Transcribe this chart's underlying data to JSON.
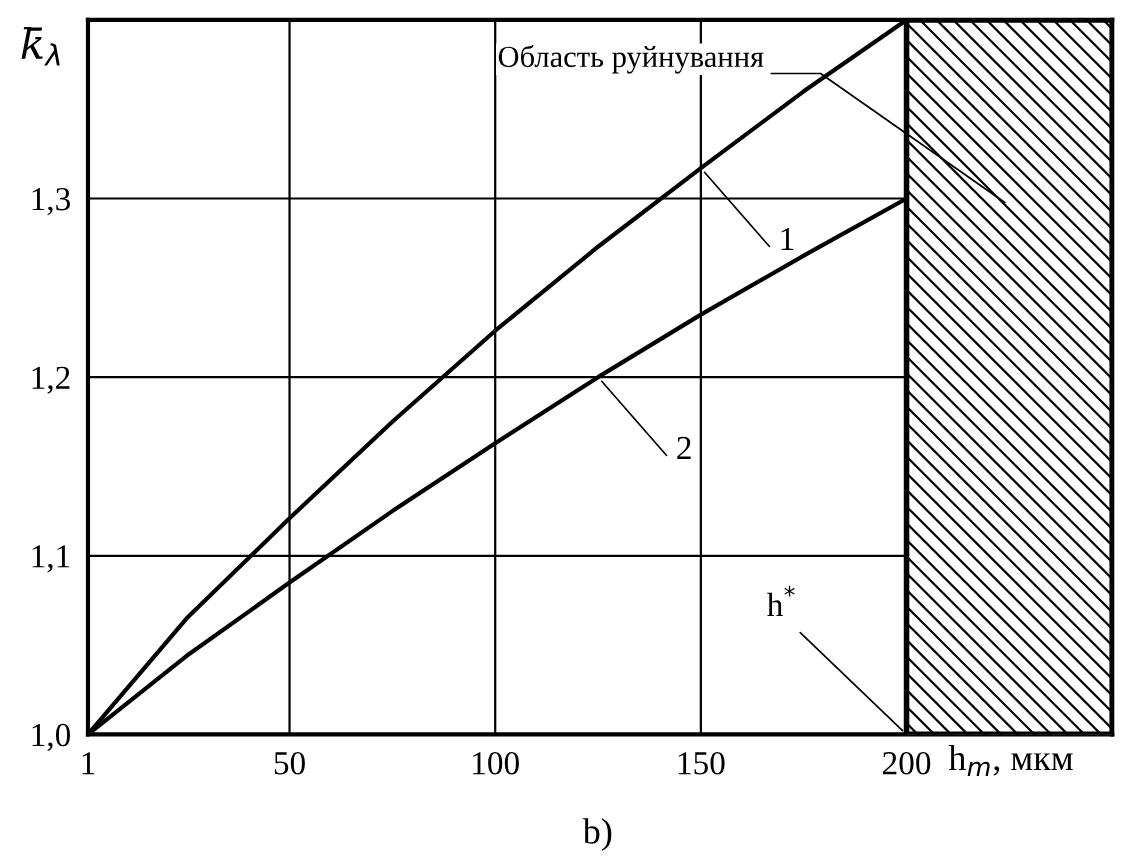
{
  "chart_data": {
    "type": "line",
    "xlabel": "h$_{m}$, мкм",
    "ylabel": "k̄$_{λ}$",
    "xlim": [
      1,
      250
    ],
    "ylim": [
      1.0,
      1.4
    ],
    "xticks": [
      1,
      50,
      100,
      150,
      200
    ],
    "yticks": [
      {
        "value": 1.0,
        "label": "1,0"
      },
      {
        "value": 1.1,
        "label": "1,1"
      },
      {
        "value": 1.2,
        "label": "1,2"
      },
      {
        "value": 1.3,
        "label": "1,3"
      }
    ],
    "grid": true,
    "marker": "none",
    "line_style": "solid",
    "series": [
      {
        "color": "#000000",
        "x": [
          1,
          25,
          50,
          75,
          100,
          125,
          150,
          175,
          200
        ],
        "values": [
          1.0,
          1.065,
          1.121,
          1.175,
          1.226,
          1.273,
          1.317,
          1.36,
          1.4
        ]
      },
      {
        "color": "#000000",
        "x": [
          1,
          25,
          50,
          75,
          100,
          125,
          150,
          175,
          200
        ],
        "values": [
          1.0,
          1.044,
          1.085,
          1.125,
          1.163,
          1.2,
          1.235,
          1.268,
          1.3
        ]
      }
    ],
    "bands": [
      {
        "axis": "x",
        "from": 200,
        "to": 250,
        "label": "Область руйнування",
        "color": "#000000"
      }
    ],
    "annotations": [
      {
        "text": "1",
        "x": 150,
        "y": 1.317
      },
      {
        "text": "2",
        "x": 125,
        "y": 1.2
      },
      {
        "text": "h$^{*}$",
        "x": 200,
        "y": 1.0
      },
      "b)"
    ]
  }
}
